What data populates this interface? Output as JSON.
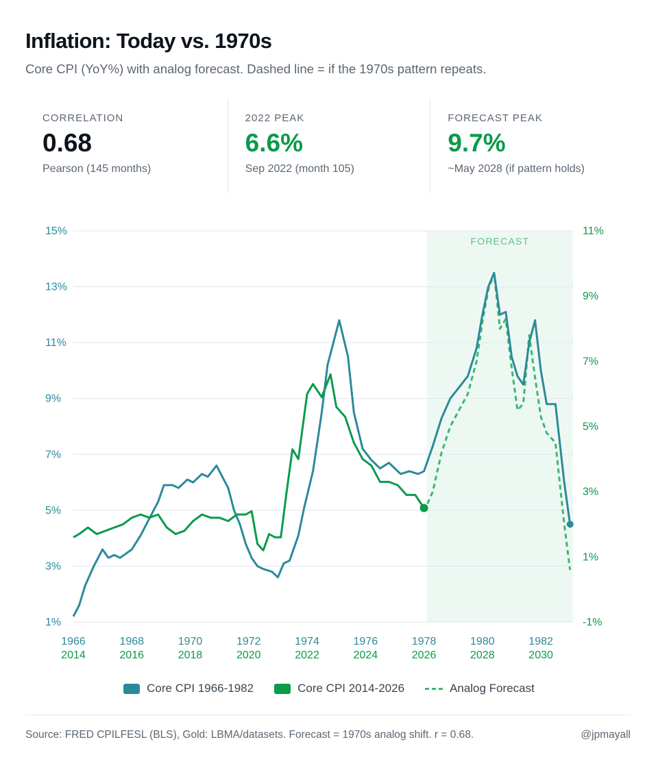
{
  "header": {
    "title": "Inflation: Today vs. 1970s",
    "subtitle": "Core CPI (YoY%) with analog forecast. Dashed line = if the 1970s pattern repeats."
  },
  "stats": [
    {
      "label": "CORRELATION",
      "value": "0.68",
      "note": "Pearson (145 months)"
    },
    {
      "label": "2022 PEAK",
      "value": "6.6%",
      "note": "Sep 2022 (month 105)"
    },
    {
      "label": "FORECAST PEAK",
      "value": "9.7%",
      "note": "~May 2028 (if pattern holds)"
    }
  ],
  "legend": {
    "item1": "Core CPI 1966-1982",
    "item2": "Core CPI 2014-2026",
    "item3": "Analog Forecast"
  },
  "footer": {
    "source": "Source: FRED CPILFESL (BLS), Gold: LBMA/datasets. Forecast = 1970s analog shift. r = 0.68.",
    "handle": "@jpmayall"
  },
  "colors": {
    "teal": "#2a8a9a",
    "green": "#0a9a4a",
    "forecast": "#3bb871",
    "forecast_band": "#eef8f2",
    "grid": "#e1e6ea"
  },
  "chart_data": {
    "type": "line",
    "forecast_label": "FORECAST",
    "left_axis": {
      "ylim": [
        1,
        15
      ],
      "ticks": [
        "15%",
        "13%",
        "11%",
        "9%",
        "7%",
        "5%",
        "3%",
        "1%"
      ]
    },
    "right_axis": {
      "ylim": [
        -1,
        11
      ],
      "ticks": [
        "11%",
        "9%",
        "7%",
        "5%",
        "3%",
        "1%",
        "-1%"
      ]
    },
    "x_ticks_top": [
      "1966",
      "1968",
      "1970",
      "1972",
      "1974",
      "1976",
      "1978",
      "1980",
      "1982"
    ],
    "x_ticks_bottom": [
      "2014",
      "2016",
      "2018",
      "2020",
      "2022",
      "2024",
      "2026",
      "2028",
      "2030"
    ],
    "x_range_top_years": [
      1966,
      1983.1
    ],
    "forecast_start_year": 1978.1,
    "series": [
      {
        "name": "Core CPI 1966-1982",
        "axis": "left",
        "x": [
          1966.0,
          1966.2,
          1966.4,
          1966.7,
          1967.0,
          1967.2,
          1967.4,
          1967.6,
          1968.0,
          1968.3,
          1968.6,
          1968.9,
          1969.1,
          1969.4,
          1969.6,
          1969.9,
          1970.1,
          1970.4,
          1970.6,
          1970.9,
          1971.1,
          1971.3,
          1971.5,
          1971.7,
          1971.9,
          1972.1,
          1972.3,
          1972.5,
          1972.8,
          1973.0,
          1973.2,
          1973.4,
          1973.7,
          1973.9,
          1974.2,
          1974.5,
          1974.7,
          1974.9,
          1975.1,
          1975.4,
          1975.6,
          1975.9,
          1976.2,
          1976.5,
          1976.8,
          1977.2,
          1977.5,
          1977.8,
          1978.0,
          1978.3,
          1978.6,
          1978.9,
          1979.2,
          1979.5,
          1979.8,
          1980.0,
          1980.2,
          1980.4,
          1980.6,
          1980.8,
          1981.0,
          1981.2,
          1981.4,
          1981.6,
          1981.8,
          1982.0,
          1982.2,
          1982.5,
          1982.8,
          1983.0
        ],
        "values": [
          1.2,
          1.6,
          2.3,
          3.0,
          3.6,
          3.3,
          3.4,
          3.3,
          3.6,
          4.1,
          4.7,
          5.3,
          5.9,
          5.9,
          5.8,
          6.1,
          6.0,
          6.3,
          6.2,
          6.6,
          6.2,
          5.8,
          5.0,
          4.5,
          3.8,
          3.3,
          3.0,
          2.9,
          2.8,
          2.6,
          3.1,
          3.2,
          4.1,
          5.1,
          6.4,
          8.5,
          10.2,
          11.0,
          11.8,
          10.5,
          8.5,
          7.2,
          6.8,
          6.5,
          6.7,
          6.3,
          6.4,
          6.3,
          6.4,
          7.3,
          8.3,
          9.0,
          9.4,
          9.8,
          10.8,
          12.0,
          13.0,
          13.5,
          12.0,
          12.1,
          10.5,
          9.8,
          9.5,
          11.0,
          11.8,
          10.0,
          8.8,
          8.8,
          6.0,
          4.5
        ]
      },
      {
        "name": "Core CPI 2014-2026",
        "axis": "right",
        "x": [
          2014.0,
          2014.2,
          2014.5,
          2014.8,
          2015.1,
          2015.4,
          2015.7,
          2016.0,
          2016.3,
          2016.6,
          2016.9,
          2017.2,
          2017.5,
          2017.8,
          2018.1,
          2018.4,
          2018.7,
          2019.0,
          2019.3,
          2019.6,
          2019.9,
          2020.1,
          2020.3,
          2020.5,
          2020.7,
          2020.9,
          2021.1,
          2021.3,
          2021.5,
          2021.7,
          2022.0,
          2022.2,
          2022.5,
          2022.8,
          2023.0,
          2023.3,
          2023.6,
          2023.9,
          2024.2,
          2024.5,
          2024.8,
          2025.1,
          2025.4,
          2025.7,
          2026.0
        ],
        "values": [
          1.6,
          1.7,
          1.9,
          1.7,
          1.8,
          1.9,
          2.0,
          2.2,
          2.3,
          2.2,
          2.3,
          1.9,
          1.7,
          1.8,
          2.1,
          2.3,
          2.2,
          2.2,
          2.1,
          2.3,
          2.3,
          2.4,
          1.4,
          1.2,
          1.7,
          1.6,
          1.6,
          3.0,
          4.3,
          4.0,
          6.0,
          6.3,
          5.9,
          6.6,
          5.6,
          5.3,
          4.5,
          4.0,
          3.8,
          3.3,
          3.3,
          3.2,
          2.9,
          2.9,
          2.5
        ]
      },
      {
        "name": "Analog Forecast",
        "axis": "right",
        "x": [
          2026.0,
          2026.3,
          2026.6,
          2026.9,
          2027.2,
          2027.5,
          2027.8,
          2028.0,
          2028.2,
          2028.4,
          2028.6,
          2028.8,
          2029.0,
          2029.2,
          2029.4,
          2029.6,
          2029.8,
          2030.0,
          2030.2,
          2030.5,
          2030.8,
          2031.0
        ],
        "values": [
          2.4,
          3.0,
          4.2,
          5.0,
          5.5,
          6.0,
          7.0,
          8.2,
          9.2,
          9.7,
          8.0,
          8.3,
          6.8,
          5.5,
          5.7,
          7.8,
          6.5,
          5.3,
          4.8,
          4.5,
          2.0,
          0.6
        ]
      }
    ]
  }
}
